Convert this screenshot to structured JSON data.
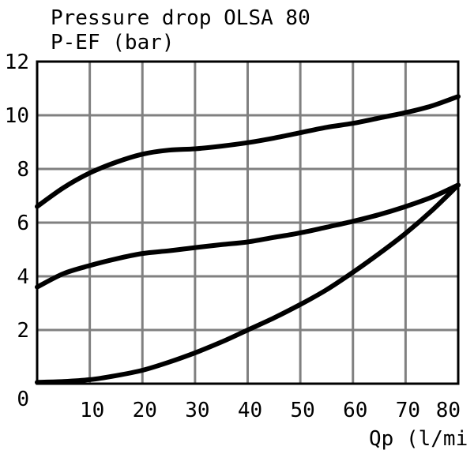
{
  "chart_data": {
    "type": "line",
    "title": "Pressure drop OLSA 80",
    "ylabel": "P-EF (bar)",
    "xlabel": "Qp (l/mi",
    "xlim": [
      0,
      80
    ],
    "ylim": [
      0,
      12
    ],
    "grid": true,
    "x_ticks": [
      "10",
      "20",
      "30",
      "40",
      "50",
      "60",
      "70",
      "80"
    ],
    "y_ticks": [
      "0",
      "2",
      "4",
      "6",
      "8",
      "10",
      "12"
    ],
    "series": [
      {
        "x": [
          0,
          5,
          10,
          15,
          20,
          25,
          30,
          35,
          40,
          45,
          50,
          55,
          60,
          65,
          70,
          75,
          80
        ],
        "y": [
          6.6,
          7.3,
          7.85,
          8.25,
          8.55,
          8.7,
          8.75,
          8.85,
          8.98,
          9.15,
          9.35,
          9.55,
          9.7,
          9.9,
          10.1,
          10.35,
          10.7
        ]
      },
      {
        "x": [
          0,
          5,
          10,
          15,
          20,
          25,
          30,
          35,
          40,
          45,
          50,
          55,
          60,
          65,
          70,
          75,
          80
        ],
        "y": [
          3.6,
          4.1,
          4.4,
          4.65,
          4.85,
          4.95,
          5.07,
          5.18,
          5.28,
          5.45,
          5.62,
          5.83,
          6.05,
          6.3,
          6.6,
          6.95,
          7.4
        ]
      },
      {
        "x": [
          0,
          5,
          10,
          15,
          20,
          25,
          30,
          35,
          40,
          45,
          50,
          55,
          60,
          65,
          70,
          75,
          80
        ],
        "y": [
          0.05,
          0.08,
          0.15,
          0.3,
          0.5,
          0.8,
          1.15,
          1.55,
          2.0,
          2.45,
          2.95,
          3.5,
          4.15,
          4.85,
          5.6,
          6.45,
          7.4
        ]
      }
    ]
  }
}
